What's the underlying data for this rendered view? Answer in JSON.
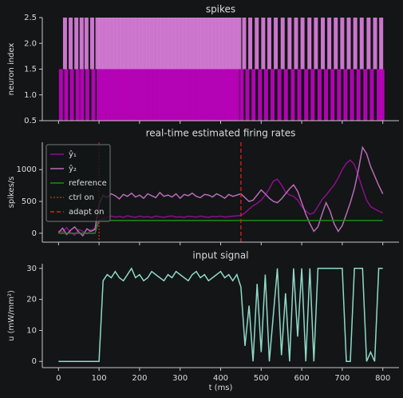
{
  "chart_data": [
    {
      "type": "eventplot",
      "title": "spikes",
      "ylabel": "neuron index",
      "xlim": [
        -40,
        840
      ],
      "ylim": [
        0.5,
        2.5
      ],
      "xticks": [
        0,
        100,
        200,
        300,
        400,
        500,
        600,
        700,
        800
      ],
      "show_xtick_labels": false,
      "yticks": [
        0.5,
        {
          "value": 1,
          "label": "1.0"
        },
        1.5,
        {
          "value": 2,
          "label": "2.0"
        },
        2.5
      ],
      "series": [
        {
          "color": "#c400c4",
          "offset": 1,
          "positions": [
            6,
            19,
            33,
            47,
            58,
            71,
            86,
            99,
            108,
            117,
            126,
            135,
            144,
            153,
            162,
            171,
            180,
            189,
            198,
            207,
            216,
            225,
            234,
            243,
            252,
            261,
            270,
            279,
            288,
            297,
            306,
            315,
            324,
            333,
            342,
            351,
            360,
            369,
            378,
            387,
            396,
            405,
            414,
            423,
            432,
            441,
            452,
            466,
            481,
            497,
            512,
            528,
            545,
            561,
            578,
            594,
            611,
            627,
            644,
            660,
            676,
            692,
            708,
            724,
            740,
            757,
            773,
            790,
            799
          ]
        },
        {
          "color": "#e080e0",
          "offset": 2,
          "positions": [
            16,
            30,
            44,
            57,
            69,
            83,
            96,
            104,
            113,
            122,
            131,
            140,
            149,
            158,
            167,
            176,
            185,
            194,
            203,
            212,
            221,
            230,
            239,
            248,
            257,
            266,
            275,
            284,
            293,
            302,
            311,
            320,
            329,
            338,
            347,
            356,
            365,
            374,
            383,
            392,
            401,
            410,
            419,
            428,
            437,
            446,
            458,
            473,
            489,
            505,
            520,
            536,
            553,
            570,
            586,
            602,
            619,
            635,
            652,
            668,
            684,
            700,
            716,
            732,
            748,
            765,
            781,
            796
          ]
        }
      ]
    },
    {
      "type": "line",
      "title": "real-time estimated firing rates",
      "ylabel": "spikes/s",
      "xlim": [
        -40,
        840
      ],
      "ylim": [
        -140,
        1430
      ],
      "xticks": [
        0,
        100,
        200,
        300,
        400,
        500,
        600,
        700,
        800
      ],
      "show_xtick_labels": false,
      "yticks": [
        0,
        500,
        1000
      ],
      "legend": "upper left",
      "x": [
        0,
        10,
        20,
        30,
        40,
        50,
        60,
        70,
        80,
        90,
        100,
        110,
        120,
        130,
        140,
        150,
        160,
        170,
        180,
        190,
        200,
        210,
        220,
        230,
        240,
        250,
        260,
        270,
        280,
        290,
        300,
        310,
        320,
        330,
        340,
        350,
        360,
        370,
        380,
        390,
        400,
        410,
        420,
        430,
        440,
        450,
        460,
        470,
        480,
        490,
        500,
        510,
        520,
        530,
        540,
        550,
        560,
        570,
        580,
        590,
        600,
        610,
        620,
        630,
        640,
        650,
        660,
        670,
        680,
        690,
        700,
        710,
        720,
        730,
        740,
        750,
        760,
        770,
        780,
        790,
        800
      ],
      "series": [
        {
          "name": "ŷ₁",
          "color": "#8c0f8c",
          "values": [
            40,
            20,
            90,
            10,
            -30,
            60,
            30,
            -10,
            50,
            80,
            200,
            230,
            250,
            270,
            255,
            265,
            250,
            275,
            260,
            250,
            270,
            255,
            262,
            248,
            270,
            258,
            250,
            265,
            272,
            255,
            260,
            250,
            268,
            262,
            255,
            270,
            258,
            250,
            265,
            260,
            270,
            255,
            262,
            268,
            275,
            280,
            320,
            380,
            430,
            470,
            520,
            600,
            700,
            820,
            850,
            760,
            650,
            600,
            580,
            520,
            420,
            350,
            300,
            320,
            420,
            530,
            600,
            680,
            760,
            870,
            1000,
            1100,
            1150,
            1080,
            900,
            700,
            520,
            420,
            380,
            350,
            320
          ]
        },
        {
          "name": "ŷ₂",
          "color": "#b86bb8",
          "values": [
            10,
            80,
            -20,
            50,
            100,
            20,
            -40,
            70,
            30,
            60,
            450,
            600,
            560,
            620,
            590,
            540,
            610,
            580,
            630,
            570,
            600,
            550,
            620,
            590,
            560,
            640,
            580,
            600,
            570,
            620,
            550,
            610,
            590,
            630,
            580,
            560,
            610,
            600,
            570,
            620,
            590,
            550,
            610,
            580,
            600,
            620,
            560,
            500,
            520,
            600,
            680,
            620,
            550,
            500,
            480,
            540,
            620,
            700,
            760,
            660,
            480,
            300,
            150,
            30,
            100,
            300,
            480,
            350,
            150,
            30,
            120,
            300,
            480,
            700,
            1000,
            1350,
            1250,
            1050,
            900,
            750,
            620
          ]
        },
        {
          "name": "reference",
          "color": "#1a8c1a",
          "values": [
            0,
            0,
            0,
            0,
            0,
            0,
            0,
            0,
            0,
            0,
            200,
            200,
            200,
            200,
            200,
            200,
            200,
            200,
            200,
            200,
            200,
            200,
            200,
            200,
            200,
            200,
            200,
            200,
            200,
            200,
            200,
            200,
            200,
            200,
            200,
            200,
            200,
            200,
            200,
            200,
            200,
            200,
            200,
            200,
            200,
            200,
            200,
            200,
            200,
            200,
            200,
            200,
            200,
            200,
            200,
            200,
            200,
            200,
            200,
            200,
            200,
            200,
            200,
            200,
            200,
            200,
            200,
            200,
            200,
            200,
            200,
            200,
            200,
            200,
            200,
            200,
            200,
            200,
            200,
            200,
            200
          ]
        }
      ],
      "vlines": [
        {
          "name": "ctrl on",
          "x": 100,
          "color": "#d02020",
          "style": "dotted"
        },
        {
          "name": "adapt on",
          "x": 450,
          "color": "#e02020",
          "style": "dashed"
        }
      ]
    },
    {
      "type": "line",
      "title": "input signal",
      "ylabel": "u (mW/mm²)",
      "xlabel": "t (ms)",
      "xlim": [
        -40,
        840
      ],
      "ylim": [
        -2,
        31.5
      ],
      "xticks": [
        0,
        100,
        200,
        300,
        400,
        500,
        600,
        700,
        800
      ],
      "show_xtick_labels": true,
      "yticks": [
        0,
        10,
        20,
        30
      ],
      "x": [
        0,
        10,
        20,
        30,
        40,
        50,
        60,
        70,
        80,
        90,
        100,
        110,
        120,
        130,
        140,
        150,
        160,
        170,
        180,
        190,
        200,
        210,
        220,
        230,
        240,
        250,
        260,
        270,
        280,
        290,
        300,
        310,
        320,
        330,
        340,
        350,
        360,
        370,
        380,
        390,
        400,
        410,
        420,
        430,
        440,
        450,
        460,
        470,
        480,
        490,
        500,
        510,
        520,
        530,
        540,
        550,
        560,
        570,
        580,
        590,
        600,
        610,
        620,
        630,
        640,
        650,
        660,
        670,
        680,
        690,
        700,
        710,
        720,
        730,
        740,
        750,
        760,
        770,
        780,
        790,
        800
      ],
      "series": [
        {
          "color": "#8fd9c8",
          "values": [
            0,
            0,
            0,
            0,
            0,
            0,
            0,
            0,
            0,
            0,
            0,
            26,
            28,
            27,
            29,
            27,
            26,
            28,
            30,
            27,
            28,
            26,
            27,
            29,
            28,
            27,
            26,
            28,
            27,
            29,
            28,
            27,
            26,
            28,
            29,
            27,
            28,
            26,
            27,
            28,
            29,
            27,
            28,
            26,
            28,
            24,
            5,
            18,
            0,
            25,
            3,
            28,
            0,
            15,
            30,
            2,
            22,
            0,
            30,
            8,
            30,
            0,
            30,
            0,
            30,
            30,
            30,
            30,
            30,
            30,
            30,
            0,
            0,
            30,
            30,
            30,
            0,
            3,
            0,
            30,
            30
          ]
        }
      ]
    }
  ]
}
